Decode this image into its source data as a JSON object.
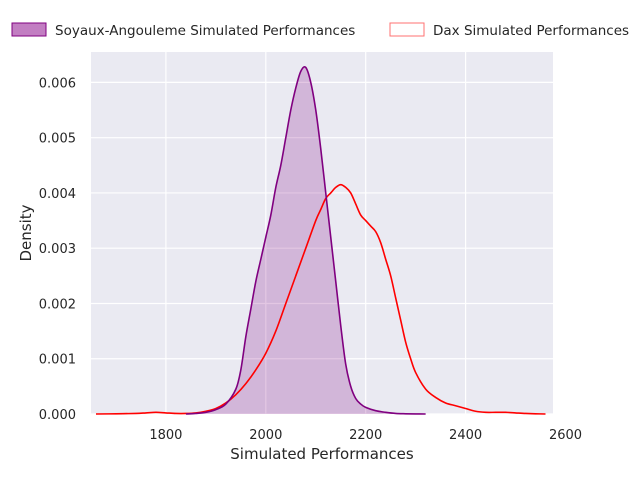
{
  "chart_data": {
    "type": "area",
    "xlabel": "Simulated Performances",
    "ylabel": "Density",
    "xlim": [
      1650,
      2575
    ],
    "ylim": [
      0,
      0.00655
    ],
    "xticks": [
      1800,
      2000,
      2200,
      2400,
      2600
    ],
    "xtick_labels": [
      "1800",
      "2000",
      "2200",
      "2400",
      "2600"
    ],
    "yticks": [
      0.0,
      0.001,
      0.002,
      0.003,
      0.004,
      0.005,
      0.006
    ],
    "ytick_labels": [
      "0.000",
      "0.001",
      "0.002",
      "0.003",
      "0.004",
      "0.005",
      "0.006"
    ],
    "grid": true,
    "legend_position": "top",
    "series": [
      {
        "name": "Soyaux-Angouleme Simulated Performances",
        "color": "#800080",
        "filled": true,
        "x": [
          1840,
          1860,
          1880,
          1900,
          1920,
          1940,
          1950,
          1960,
          1970,
          1980,
          1990,
          2000,
          2010,
          2020,
          2030,
          2040,
          2050,
          2060,
          2070,
          2080,
          2090,
          2100,
          2110,
          2120,
          2130,
          2140,
          2150,
          2160,
          2170,
          2180,
          2190,
          2200,
          2220,
          2240,
          2260,
          2280,
          2300,
          2320
        ],
        "y": [
          0.0,
          1e-05,
          3e-05,
          8e-05,
          0.00018,
          0.00045,
          0.0008,
          0.0014,
          0.0019,
          0.0024,
          0.0028,
          0.0032,
          0.0036,
          0.0041,
          0.0045,
          0.005,
          0.0055,
          0.0059,
          0.0062,
          0.00627,
          0.006,
          0.0055,
          0.0048,
          0.004,
          0.0032,
          0.0024,
          0.0016,
          0.0009,
          0.0005,
          0.00028,
          0.00018,
          0.00012,
          6e-05,
          3e-05,
          1e-05,
          4e-06,
          1e-06,
          0.0
        ]
      },
      {
        "name": "Dax Simulated Performances",
        "color": "#ff0000",
        "filled": false,
        "x": [
          1660,
          1700,
          1740,
          1760,
          1780,
          1800,
          1820,
          1840,
          1860,
          1880,
          1900,
          1920,
          1940,
          1960,
          1980,
          2000,
          2020,
          2040,
          2060,
          2080,
          2100,
          2110,
          2120,
          2130,
          2140,
          2150,
          2160,
          2170,
          2180,
          2190,
          2200,
          2210,
          2220,
          2230,
          2240,
          2250,
          2260,
          2270,
          2280,
          2290,
          2300,
          2320,
          2340,
          2360,
          2380,
          2400,
          2420,
          2440,
          2460,
          2480,
          2500,
          2520,
          2540,
          2560
        ],
        "y": [
          0.0,
          4e-06,
          1e-05,
          2e-05,
          3e-05,
          2e-05,
          1e-05,
          1e-05,
          2e-05,
          5e-05,
          0.0001,
          0.0002,
          0.00035,
          0.00055,
          0.0008,
          0.0011,
          0.0015,
          0.002,
          0.0025,
          0.003,
          0.0035,
          0.0037,
          0.0039,
          0.004,
          0.0041,
          0.00415,
          0.0041,
          0.004,
          0.0038,
          0.0036,
          0.0035,
          0.0034,
          0.0033,
          0.0031,
          0.0028,
          0.0025,
          0.0021,
          0.0017,
          0.0013,
          0.001,
          0.00075,
          0.00045,
          0.0003,
          0.0002,
          0.00015,
          0.0001,
          5e-05,
          3e-05,
          3e-05,
          3e-05,
          2e-05,
          1e-05,
          4e-06,
          0.0
        ]
      }
    ]
  }
}
